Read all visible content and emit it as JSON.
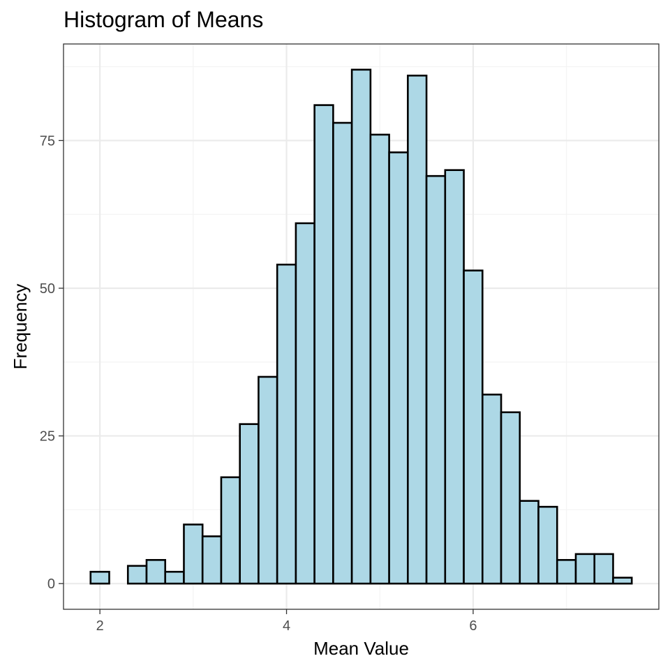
{
  "chart_data": {
    "type": "bar",
    "title": "Histogram of Means",
    "xlabel": "Mean Value",
    "ylabel": "Frequency",
    "bin_width": 0.2,
    "bins": [
      {
        "x0": 1.9,
        "x1": 2.1,
        "count": 2
      },
      {
        "x0": 2.1,
        "x1": 2.3,
        "count": 0
      },
      {
        "x0": 2.3,
        "x1": 2.5,
        "count": 3
      },
      {
        "x0": 2.5,
        "x1": 2.7,
        "count": 4
      },
      {
        "x0": 2.7,
        "x1": 2.9,
        "count": 2
      },
      {
        "x0": 2.9,
        "x1": 3.1,
        "count": 10
      },
      {
        "x0": 3.1,
        "x1": 3.3,
        "count": 8
      },
      {
        "x0": 3.3,
        "x1": 3.5,
        "count": 18
      },
      {
        "x0": 3.5,
        "x1": 3.7,
        "count": 27
      },
      {
        "x0": 3.7,
        "x1": 3.9,
        "count": 35
      },
      {
        "x0": 3.9,
        "x1": 4.1,
        "count": 54
      },
      {
        "x0": 4.1,
        "x1": 4.3,
        "count": 61
      },
      {
        "x0": 4.3,
        "x1": 4.5,
        "count": 81
      },
      {
        "x0": 4.5,
        "x1": 4.7,
        "count": 78
      },
      {
        "x0": 4.7,
        "x1": 4.9,
        "count": 87
      },
      {
        "x0": 4.9,
        "x1": 5.1,
        "count": 76
      },
      {
        "x0": 5.1,
        "x1": 5.3,
        "count": 73
      },
      {
        "x0": 5.3,
        "x1": 5.5,
        "count": 86
      },
      {
        "x0": 5.5,
        "x1": 5.7,
        "count": 69
      },
      {
        "x0": 5.7,
        "x1": 5.9,
        "count": 70
      },
      {
        "x0": 5.9,
        "x1": 6.1,
        "count": 53
      },
      {
        "x0": 6.1,
        "x1": 6.3,
        "count": 32
      },
      {
        "x0": 6.3,
        "x1": 6.5,
        "count": 29
      },
      {
        "x0": 6.5,
        "x1": 6.7,
        "count": 14
      },
      {
        "x0": 6.7,
        "x1": 6.9,
        "count": 13
      },
      {
        "x0": 6.9,
        "x1": 7.1,
        "count": 4
      },
      {
        "x0": 7.1,
        "x1": 7.3,
        "count": 5
      },
      {
        "x0": 7.3,
        "x1": 7.5,
        "count": 5
      },
      {
        "x0": 7.5,
        "x1": 7.7,
        "count": 1
      }
    ],
    "xlim": [
      1.61,
      7.99
    ],
    "ylim": [
      -4.35,
      91.35
    ],
    "x_ticks": [
      2,
      4,
      6
    ],
    "x_tick_labels": [
      "2",
      "4",
      "6"
    ],
    "y_ticks": [
      0,
      25,
      50,
      75
    ],
    "y_tick_labels": [
      "0",
      "25",
      "50",
      "75"
    ],
    "x_minor_gridlines": [
      3,
      5,
      7
    ],
    "y_minor_gridlines": [
      12.5,
      37.5,
      62.5,
      87.5
    ],
    "grid": true,
    "legend": false,
    "colors": {
      "bar_fill": "#add8e6",
      "bar_stroke": "#000000",
      "grid_major": "#ebebeb",
      "grid_minor": "#f3f3f3",
      "panel_border": "#333333"
    }
  }
}
